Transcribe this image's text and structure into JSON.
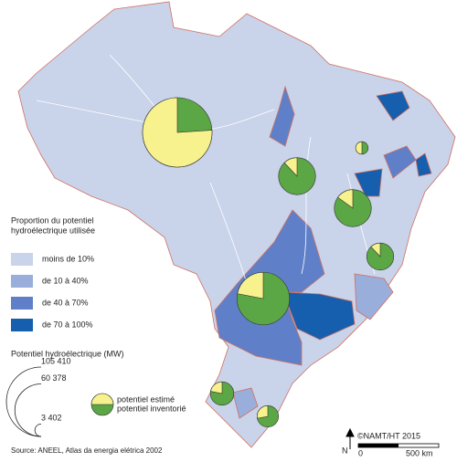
{
  "title_lines": [
    "Proportion du potentiel",
    "hydroélectrique utilisée"
  ],
  "classes": [
    {
      "label": "moins de 10%",
      "color": "#c9d3ea"
    },
    {
      "label": "de 10 à 40%",
      "color": "#9aaedb"
    },
    {
      "label": "de 40 à 70%",
      "color": "#5f80c8"
    },
    {
      "label": "de 70 à 100%",
      "color": "#165fae"
    }
  ],
  "size_legend": {
    "title": "Potentiel hydroélectrique (MW)",
    "values": [
      {
        "value": 105410,
        "label": "105 410"
      },
      {
        "value": 60378,
        "label": "60 378"
      },
      {
        "value": 3402,
        "label": "3 402"
      }
    ]
  },
  "pie_legend": {
    "estimated": "potentiel estimé",
    "inventoried": "potentiel inventorié",
    "estimated_color": "#f8f28e",
    "inventoried_color": "#5ba645"
  },
  "pies": [
    {
      "potential": 105410,
      "estimated_share": 76
    },
    {
      "potential": 30000,
      "estimated_share": 12
    },
    {
      "potential": 30000,
      "estimated_share": 15
    },
    {
      "potential": 3402,
      "estimated_share": 50
    },
    {
      "potential": 16000,
      "estimated_share": 12
    },
    {
      "potential": 60378,
      "estimated_share": 22
    },
    {
      "potential": 12000,
      "estimated_share": 22
    },
    {
      "potential": 10000,
      "estimated_share": 28
    }
  ],
  "credit": "©NAMT/HT 2015",
  "north": "N",
  "scale": {
    "start": "0",
    "end": "500 km"
  },
  "source": "Source: ANEEL, Atlas da energia elétrica 2002"
}
